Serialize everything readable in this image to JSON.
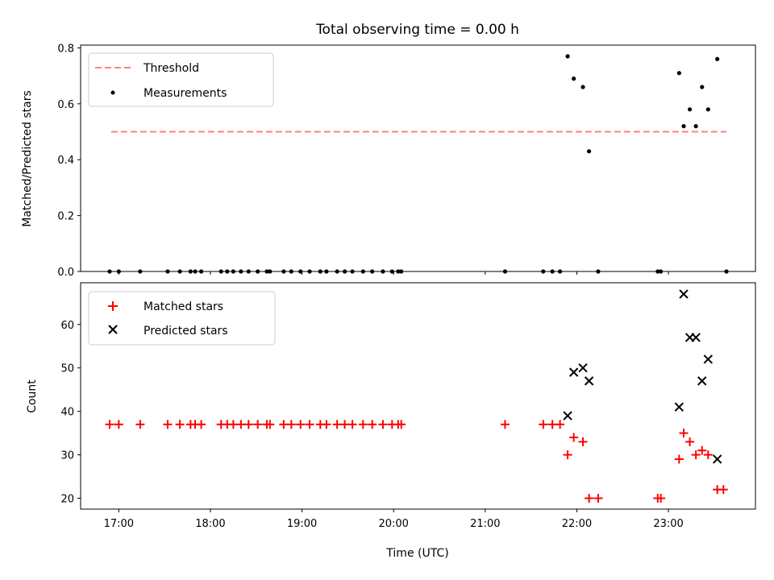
{
  "chart_data": [
    {
      "type": "scatter",
      "title": "Total observing time = 0.00 h",
      "xlabel": "",
      "ylabel": "Matched/Predicted stars",
      "xlim": [
        "16:35",
        "23:57"
      ],
      "ylim": [
        0,
        0.81
      ],
      "yticks": [
        "0.0",
        "0.2",
        "0.4",
        "0.6",
        "0.8"
      ],
      "ytick_values": [
        0,
        0.2,
        0.4,
        0.6,
        0.8
      ],
      "xticks": [
        "17:00",
        "18:00",
        "19:00",
        "20:00",
        "21:00",
        "22:00",
        "23:00"
      ],
      "legend": "upper left",
      "series": [
        {
          "name": "Threshold",
          "style": "dashed line",
          "color": "#ff7f7f",
          "points": [
            [
              "16:55",
              0.5
            ],
            [
              "23:38",
              0.5
            ]
          ]
        },
        {
          "name": "Measurements",
          "style": "dot",
          "color": "#000000",
          "points": [
            [
              "16:54",
              0
            ],
            [
              "17:00",
              0
            ],
            [
              "17:14",
              0
            ],
            [
              "17:32",
              0
            ],
            [
              "17:40",
              0
            ],
            [
              "17:47",
              0
            ],
            [
              "17:50",
              0
            ],
            [
              "17:54",
              0
            ],
            [
              "18:07",
              0
            ],
            [
              "18:11",
              0
            ],
            [
              "18:15",
              0
            ],
            [
              "18:20",
              0
            ],
            [
              "18:25",
              0
            ],
            [
              "18:31",
              0
            ],
            [
              "18:37",
              0
            ],
            [
              "18:39",
              0
            ],
            [
              "18:48",
              0
            ],
            [
              "18:53",
              0
            ],
            [
              "18:59",
              0
            ],
            [
              "19:05",
              0
            ],
            [
              "19:12",
              0
            ],
            [
              "19:16",
              0
            ],
            [
              "19:23",
              0
            ],
            [
              "19:28",
              0
            ],
            [
              "19:33",
              0
            ],
            [
              "19:40",
              0
            ],
            [
              "19:46",
              0
            ],
            [
              "19:53",
              0
            ],
            [
              "19:59",
              0
            ],
            [
              "20:03",
              0
            ],
            [
              "20:05",
              0
            ],
            [
              "21:13",
              0
            ],
            [
              "21:38",
              0
            ],
            [
              "21:44",
              0
            ],
            [
              "21:49",
              0
            ],
            [
              "22:14",
              0
            ],
            [
              "22:53",
              0
            ],
            [
              "22:55",
              0
            ],
            [
              "23:38",
              0
            ],
            [
              "21:54",
              0.77
            ],
            [
              "21:58",
              0.69
            ],
            [
              "22:04",
              0.66
            ],
            [
              "22:08",
              0.43
            ],
            [
              "23:07",
              0.71
            ],
            [
              "23:10",
              0.52
            ],
            [
              "23:14",
              0.58
            ],
            [
              "23:18",
              0.52
            ],
            [
              "23:22",
              0.66
            ],
            [
              "23:26",
              0.58
            ],
            [
              "23:32",
              0.76
            ]
          ]
        }
      ]
    },
    {
      "type": "scatter",
      "title": "",
      "xlabel": "Time (UTC)",
      "ylabel": "Count",
      "xlim": [
        "16:35",
        "23:57"
      ],
      "ylim": [
        17.5,
        69.6
      ],
      "yticks": [
        "20",
        "30",
        "40",
        "50",
        "60"
      ],
      "ytick_values": [
        20,
        30,
        40,
        50,
        60
      ],
      "xticks": [
        "17:00",
        "18:00",
        "19:00",
        "20:00",
        "21:00",
        "22:00",
        "23:00"
      ],
      "legend": "upper left",
      "series": [
        {
          "name": "Matched stars",
          "marker": "plus",
          "color": "#ff0000",
          "points": [
            [
              "16:54",
              37
            ],
            [
              "17:00",
              37
            ],
            [
              "17:14",
              37
            ],
            [
              "17:32",
              37
            ],
            [
              "17:40",
              37
            ],
            [
              "17:47",
              37
            ],
            [
              "17:50",
              37
            ],
            [
              "17:54",
              37
            ],
            [
              "18:07",
              37
            ],
            [
              "18:11",
              37
            ],
            [
              "18:15",
              37
            ],
            [
              "18:20",
              37
            ],
            [
              "18:25",
              37
            ],
            [
              "18:31",
              37
            ],
            [
              "18:37",
              37
            ],
            [
              "18:39",
              37
            ],
            [
              "18:48",
              37
            ],
            [
              "18:53",
              37
            ],
            [
              "18:59",
              37
            ],
            [
              "19:05",
              37
            ],
            [
              "19:12",
              37
            ],
            [
              "19:16",
              37
            ],
            [
              "19:23",
              37
            ],
            [
              "19:28",
              37
            ],
            [
              "19:33",
              37
            ],
            [
              "19:40",
              37
            ],
            [
              "19:46",
              37
            ],
            [
              "19:53",
              37
            ],
            [
              "19:59",
              37
            ],
            [
              "20:03",
              37
            ],
            [
              "20:05",
              37
            ],
            [
              "21:13",
              37
            ],
            [
              "21:38",
              37
            ],
            [
              "21:44",
              37
            ],
            [
              "21:49",
              37
            ],
            [
              "21:54",
              30
            ],
            [
              "21:58",
              34
            ],
            [
              "22:04",
              33
            ],
            [
              "22:08",
              20
            ],
            [
              "22:14",
              20
            ],
            [
              "22:53",
              20
            ],
            [
              "22:55",
              20
            ],
            [
              "23:07",
              29
            ],
            [
              "23:10",
              35
            ],
            [
              "23:14",
              33
            ],
            [
              "23:18",
              30
            ],
            [
              "23:22",
              31
            ],
            [
              "23:26",
              30
            ],
            [
              "23:32",
              22
            ],
            [
              "23:36",
              22
            ]
          ]
        },
        {
          "name": "Predicted stars",
          "marker": "x",
          "color": "#000000",
          "points": [
            [
              "21:54",
              39
            ],
            [
              "21:58",
              49
            ],
            [
              "22:04",
              50
            ],
            [
              "22:08",
              47
            ],
            [
              "23:07",
              41
            ],
            [
              "23:10",
              67
            ],
            [
              "23:14",
              57
            ],
            [
              "23:18",
              57
            ],
            [
              "23:22",
              47
            ],
            [
              "23:26",
              52
            ],
            [
              "23:32",
              29
            ]
          ]
        }
      ]
    }
  ]
}
